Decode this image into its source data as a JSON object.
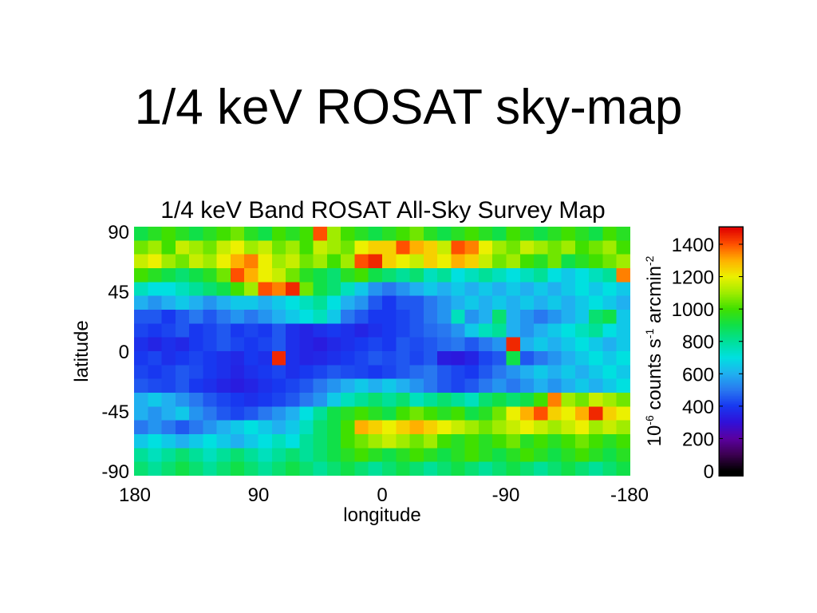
{
  "slide": {
    "title": "1/4 keV ROSAT sky-map"
  },
  "chart_data": {
    "type": "heatmap",
    "title": "1/4 keV Band ROSAT All-Sky Survey Map",
    "xlabel": "longitude",
    "ylabel": "latitude",
    "xlim": [
      180,
      -180
    ],
    "ylim": [
      -90,
      90
    ],
    "grid": false,
    "x_ticks": [
      180,
      90,
      0,
      -90,
      -180
    ],
    "y_ticks": [
      90,
      45,
      0,
      -45,
      -90
    ],
    "x": [
      175,
      165,
      155,
      145,
      135,
      125,
      115,
      105,
      95,
      85,
      75,
      65,
      55,
      45,
      35,
      25,
      15,
      5,
      -5,
      -15,
      -25,
      -35,
      -45,
      -55,
      -65,
      -75,
      -85,
      -95,
      -105,
      -115,
      -125,
      -135,
      -145,
      -155,
      -165,
      -175
    ],
    "y": [
      85,
      75,
      65,
      55,
      45,
      35,
      25,
      15,
      5,
      -5,
      -15,
      -25,
      -35,
      -45,
      -55,
      -65,
      -75,
      -85
    ],
    "values": [
      [
        900,
        950,
        1000,
        950,
        900,
        950,
        1000,
        1050,
        950,
        900,
        1000,
        950,
        1000,
        1400,
        1100,
        1000,
        950,
        900,
        950,
        1000,
        1050,
        950,
        900,
        950,
        1000,
        950,
        900,
        1000,
        950,
        900,
        950,
        1000,
        950,
        900,
        1000,
        950
      ],
      [
        1050,
        1100,
        1000,
        1150,
        1100,
        1050,
        1150,
        1200,
        1100,
        1150,
        1050,
        1100,
        1000,
        1150,
        1100,
        1050,
        1200,
        1250,
        1250,
        1400,
        1300,
        1250,
        1150,
        1400,
        1350,
        1200,
        1100,
        1050,
        1150,
        1100,
        1050,
        1100,
        1000,
        1050,
        1100,
        1000
      ],
      [
        1150,
        1200,
        1100,
        1050,
        1150,
        1100,
        1200,
        1300,
        1350,
        1200,
        1100,
        1150,
        1050,
        1100,
        1000,
        1100,
        1400,
        1450,
        1250,
        1200,
        1150,
        1250,
        1200,
        1300,
        1250,
        1150,
        1050,
        1100,
        1000,
        950,
        1050,
        900,
        950,
        1000,
        1050,
        1100
      ],
      [
        1000,
        950,
        900,
        850,
        900,
        950,
        1050,
        1400,
        1300,
        1200,
        1150,
        1050,
        950,
        900,
        850,
        950,
        1000,
        900,
        850,
        800,
        850,
        750,
        800,
        700,
        750,
        800,
        750,
        700,
        750,
        800,
        700,
        650,
        700,
        750,
        800,
        1350
      ],
      [
        750,
        700,
        700,
        750,
        800,
        850,
        900,
        1000,
        1100,
        1400,
        1350,
        1450,
        1050,
        900,
        850,
        750,
        650,
        550,
        500,
        550,
        600,
        650,
        600,
        650,
        600,
        650,
        600,
        650,
        600,
        650,
        600,
        650,
        700,
        650,
        700,
        650
      ],
      [
        600,
        550,
        600,
        650,
        600,
        550,
        600,
        650,
        650,
        600,
        650,
        700,
        750,
        800,
        700,
        600,
        550,
        450,
        400,
        450,
        450,
        500,
        550,
        600,
        650,
        600,
        650,
        600,
        650,
        600,
        650,
        600,
        650,
        700,
        650,
        600
      ],
      [
        450,
        450,
        400,
        450,
        500,
        450,
        500,
        550,
        500,
        550,
        600,
        650,
        700,
        750,
        650,
        500,
        450,
        400,
        400,
        420,
        450,
        500,
        550,
        750,
        550,
        600,
        850,
        600,
        550,
        500,
        550,
        600,
        650,
        850,
        900,
        650
      ],
      [
        420,
        400,
        420,
        450,
        400,
        420,
        450,
        400,
        420,
        400,
        450,
        380,
        350,
        380,
        400,
        380,
        350,
        380,
        400,
        420,
        450,
        480,
        500,
        550,
        650,
        750,
        800,
        600,
        550,
        600,
        650,
        700,
        750,
        800,
        700,
        650
      ],
      [
        380,
        350,
        380,
        360,
        400,
        420,
        450,
        420,
        400,
        420,
        450,
        380,
        350,
        330,
        360,
        380,
        400,
        420,
        400,
        450,
        430,
        450,
        480,
        500,
        450,
        500,
        550,
        1450,
        600,
        650,
        600,
        650,
        700,
        650,
        600,
        650
      ],
      [
        400,
        420,
        380,
        400,
        420,
        400,
        380,
        360,
        400,
        380,
        1450,
        380,
        350,
        360,
        380,
        400,
        420,
        450,
        430,
        450,
        420,
        450,
        330,
        320,
        350,
        420,
        450,
        900,
        450,
        500,
        550,
        600,
        650,
        700,
        650,
        700
      ],
      [
        420,
        400,
        420,
        450,
        430,
        400,
        380,
        350,
        380,
        400,
        420,
        380,
        400,
        420,
        450,
        430,
        420,
        400,
        420,
        450,
        480,
        500,
        450,
        420,
        400,
        450,
        500,
        550,
        600,
        650,
        600,
        650,
        600,
        650,
        700,
        650
      ],
      [
        450,
        430,
        420,
        450,
        400,
        380,
        350,
        330,
        350,
        380,
        400,
        420,
        450,
        500,
        550,
        600,
        650,
        600,
        650,
        600,
        550,
        500,
        450,
        420,
        450,
        500,
        550,
        500,
        550,
        600,
        550,
        600,
        650,
        600,
        650,
        700
      ],
      [
        600,
        650,
        600,
        550,
        500,
        450,
        420,
        400,
        380,
        400,
        420,
        450,
        500,
        550,
        650,
        750,
        800,
        850,
        800,
        850,
        750,
        800,
        850,
        800,
        750,
        850,
        900,
        850,
        900,
        1000,
        1350,
        1100,
        1050,
        1150,
        1100,
        1050
      ],
      [
        600,
        550,
        600,
        650,
        550,
        500,
        450,
        420,
        450,
        500,
        550,
        600,
        700,
        800,
        900,
        950,
        1000,
        950,
        900,
        1000,
        1050,
        1000,
        950,
        1000,
        900,
        950,
        1050,
        1200,
        1300,
        1400,
        1250,
        1200,
        1300,
        1450,
        1250,
        1200
      ],
      [
        500,
        550,
        500,
        450,
        500,
        550,
        600,
        650,
        700,
        650,
        600,
        650,
        750,
        850,
        900,
        1000,
        1300,
        1250,
        1200,
        1250,
        1300,
        1250,
        1200,
        1150,
        1100,
        1050,
        1100,
        1150,
        1200,
        1150,
        1100,
        1150,
        1200,
        1100,
        1150,
        1100
      ],
      [
        650,
        700,
        650,
        600,
        650,
        700,
        650,
        600,
        650,
        700,
        750,
        700,
        800,
        850,
        900,
        1000,
        1050,
        1100,
        1150,
        1100,
        1050,
        1100,
        1000,
        950,
        1000,
        950,
        1000,
        1050,
        950,
        1000,
        950,
        1000,
        1050,
        1000,
        950,
        1000
      ],
      [
        800,
        750,
        800,
        850,
        800,
        750,
        800,
        850,
        800,
        750,
        800,
        850,
        800,
        850,
        900,
        950,
        1000,
        950,
        900,
        950,
        1000,
        950,
        900,
        950,
        1000,
        950,
        900,
        950,
        1000,
        950,
        900,
        950,
        1000,
        950,
        900,
        950
      ],
      [
        850,
        800,
        850,
        900,
        850,
        800,
        850,
        900,
        850,
        800,
        850,
        900,
        850,
        800,
        850,
        900,
        850,
        800,
        850,
        900,
        850,
        800,
        850,
        900,
        850,
        800,
        850,
        900,
        850,
        800,
        850,
        900,
        850,
        800,
        850,
        900
      ]
    ],
    "colorbar": {
      "ticks": [
        1400,
        1200,
        1000,
        800,
        600,
        400,
        200,
        0
      ],
      "range": [
        0,
        1500
      ],
      "label": {
        "p1": "10",
        "s1": "-6",
        "p2": " counts s",
        "s2": "-1",
        "p3": " arcmin",
        "s3": "-2"
      }
    },
    "colormap": [
      [
        0,
        "#000000"
      ],
      [
        100,
        "#3c0050"
      ],
      [
        200,
        "#5a00a0"
      ],
      [
        300,
        "#3010d8"
      ],
      [
        400,
        "#1838f0"
      ],
      [
        500,
        "#2878f0"
      ],
      [
        600,
        "#20b0f0"
      ],
      [
        700,
        "#00e0e0"
      ],
      [
        800,
        "#00e098"
      ],
      [
        900,
        "#10e048"
      ],
      [
        1000,
        "#40e000"
      ],
      [
        1100,
        "#a0ec00"
      ],
      [
        1200,
        "#ecf000"
      ],
      [
        1300,
        "#ffb000"
      ],
      [
        1400,
        "#ff5000"
      ],
      [
        1500,
        "#e00000"
      ]
    ]
  }
}
